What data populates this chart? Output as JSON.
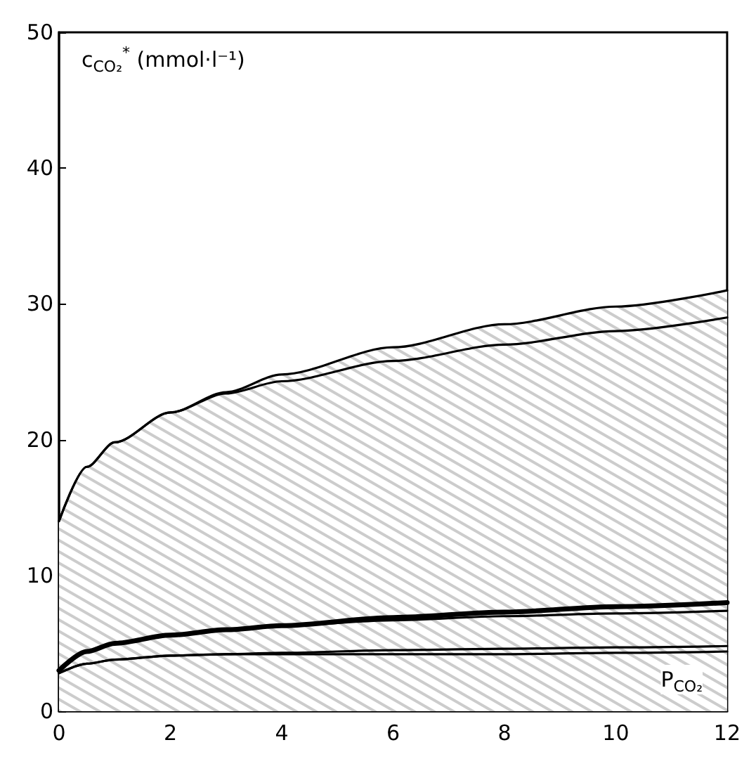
{
  "chart_data": {
    "type": "line",
    "ylabel": "c$_{CO₂}$$^{*}$ (mmol·l⁻¹)",
    "xlabel": "P$_{CO₂}$",
    "x": [
      0,
      0.5,
      1,
      2,
      3,
      4,
      6,
      8,
      10,
      12
    ],
    "series": [
      {
        "type": "area",
        "color": "#000000",
        "values": [
          14,
          18,
          19.8,
          22,
          23.5,
          24.8,
          26.8,
          28.5,
          29.8,
          31
        ]
      },
      {
        "color": "#000000",
        "values": [
          14,
          18,
          19.8,
          22,
          23.4,
          24.3,
          25.8,
          27,
          28,
          29
        ]
      },
      {
        "color": "#000000",
        "values": [
          3,
          4.4,
          5,
          5.6,
          6,
          6.3,
          6.9,
          7.3,
          7.7,
          8
        ]
      },
      {
        "color": "#000000",
        "values": [
          3,
          4.4,
          5,
          5.6,
          6,
          6.3,
          6.7,
          7,
          7.2,
          7.4
        ]
      },
      {
        "color": "#000000",
        "values": [
          2.8,
          3.5,
          3.8,
          4.1,
          4.2,
          4.3,
          4.5,
          4.6,
          4.7,
          4.8
        ]
      },
      {
        "color": "#000000",
        "values": [
          2.8,
          3.5,
          3.8,
          4.1,
          4.2,
          4.2,
          4.2,
          4.2,
          4.3,
          4.4
        ]
      }
    ],
    "xlim": [
      0,
      12
    ],
    "xticks": [
      0,
      2,
      4,
      6,
      8,
      10,
      12
    ],
    "ylim": [
      0,
      50
    ],
    "yticks": [
      0,
      10,
      20,
      30,
      40,
      50
    ],
    "grid": false,
    "marker": "none",
    "line_style": "solid"
  }
}
